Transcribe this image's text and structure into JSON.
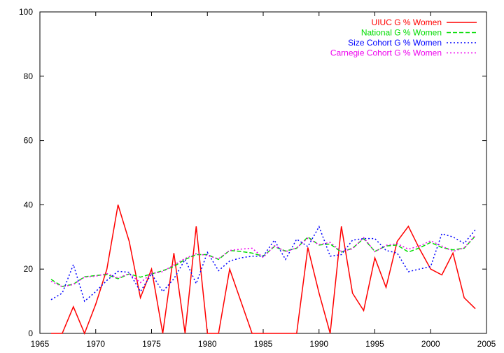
{
  "chart_data": {
    "type": "line",
    "title": "",
    "xlabel": "",
    "ylabel": "",
    "xlim": [
      1965,
      2005
    ],
    "ylim": [
      0,
      100
    ],
    "xticks": [
      1965,
      1970,
      1975,
      1980,
      1985,
      1990,
      1995,
      2000,
      2005
    ],
    "yticks": [
      0,
      20,
      40,
      60,
      80,
      100
    ],
    "grid": false,
    "legend_position": "top-right",
    "x": [
      1966,
      1967,
      1968,
      1969,
      1970,
      1971,
      1972,
      1973,
      1974,
      1975,
      1976,
      1977,
      1978,
      1979,
      1980,
      1981,
      1982,
      1983,
      1984,
      1985,
      1986,
      1987,
      1988,
      1989,
      1990,
      1991,
      1992,
      1993,
      1994,
      1995,
      1996,
      1997,
      1998,
      1999,
      2000,
      2001,
      2002,
      2003,
      2004
    ],
    "series": [
      {
        "name": "UIUC G % Women",
        "color": "#ff0000",
        "dash": "solid",
        "values": [
          0,
          0,
          8.3,
          0,
          9.1,
          20,
          40,
          28.6,
          11.1,
          20,
          0,
          25,
          0,
          33.3,
          0,
          0,
          20,
          10,
          0,
          0,
          0,
          0,
          0,
          26.7,
          12.5,
          0,
          33.3,
          12.5,
          7.1,
          23.5,
          14.3,
          28.6,
          33.3,
          26.3,
          20,
          18.2,
          25,
          11.1,
          7.7
        ]
      },
      {
        "name": "National G % Women",
        "color": "#00dd00",
        "dash": "dashed",
        "values": [
          16.8,
          14.6,
          15.3,
          17.6,
          18,
          18.3,
          17,
          18.5,
          17.5,
          18.5,
          19.5,
          20.8,
          23,
          24.5,
          24.5,
          23,
          25.8,
          25.5,
          25,
          24,
          27,
          25.6,
          26.5,
          30,
          27.5,
          27.8,
          25.3,
          26.5,
          29.5,
          25.5,
          27.2,
          27.5,
          25.3,
          26.6,
          28.3,
          26.7,
          26,
          26.5,
          30.3
        ]
      },
      {
        "name": "Size Cohort G % Women",
        "color": "#0000ff",
        "dash": "dotted",
        "values": [
          10.5,
          12.5,
          21.4,
          10,
          13,
          16.5,
          19.3,
          19,
          13,
          18.5,
          13,
          17,
          23,
          15.5,
          25.2,
          19.5,
          22.5,
          23.5,
          24,
          24,
          29,
          23,
          29.3,
          27,
          33.2,
          24,
          24.5,
          29,
          29.5,
          29.5,
          25.8,
          25,
          19.2,
          20,
          20.8,
          31,
          30,
          28,
          32.2
        ]
      },
      {
        "name": "Carnegie Cohort G % Women",
        "color": "#ee00ee",
        "dash": "dotted",
        "values": [
          16.2,
          14.5,
          15.2,
          17.5,
          17.8,
          18.6,
          17.2,
          18.6,
          15.8,
          18.6,
          19.2,
          21.3,
          23.3,
          24.8,
          24.2,
          23.2,
          25.8,
          26.2,
          26.5,
          23.6,
          27.3,
          25.4,
          26.6,
          29.6,
          27.6,
          28.3,
          25.5,
          26.3,
          29.8,
          25.4,
          27.4,
          27.9,
          26.2,
          27.2,
          28.8,
          27.2,
          25.5,
          26.6,
          30.5
        ]
      }
    ]
  }
}
